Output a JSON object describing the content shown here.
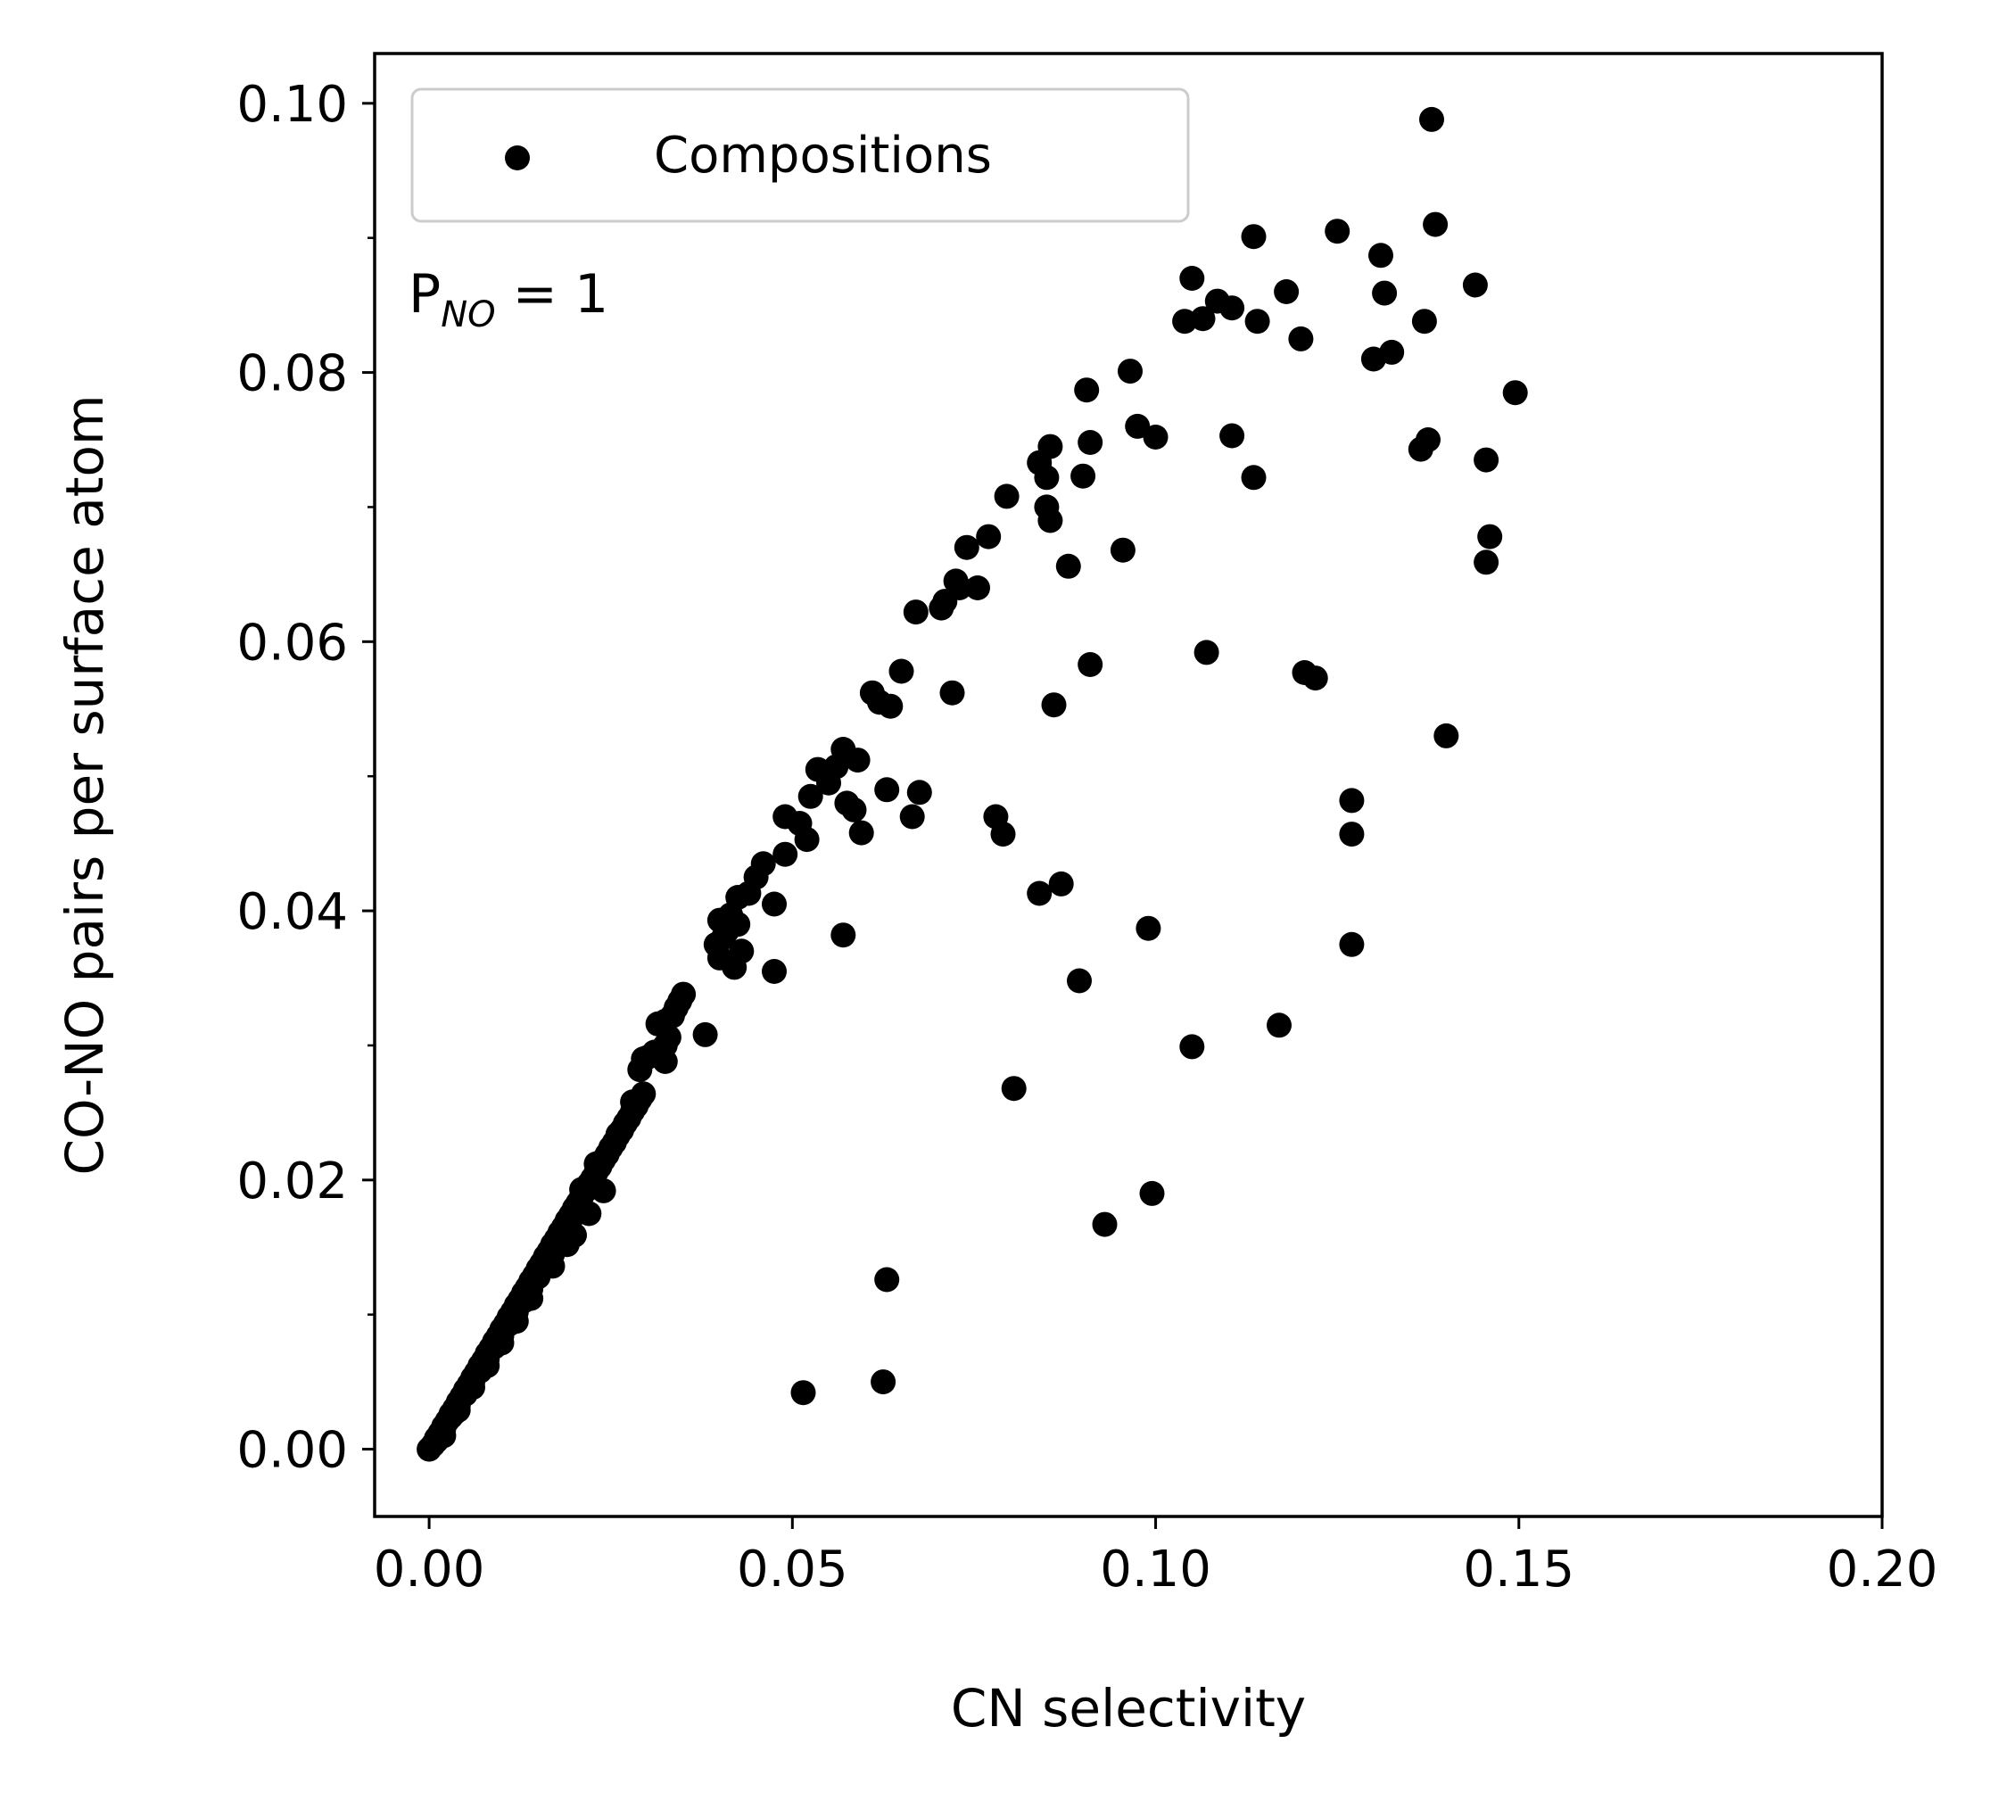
{
  "chart_data": {
    "type": "scatter",
    "xlabel": "CN selectivity",
    "ylabel": "CO-NO pairs per surface atom",
    "xlim": [
      -0.0075,
      0.2
    ],
    "ylim": [
      -0.005,
      0.1037
    ],
    "xticks": [
      0.0,
      0.05,
      0.1,
      0.15,
      0.2
    ],
    "xtick_labels": [
      "0.00",
      "0.05",
      "0.10",
      "0.15",
      "0.20"
    ],
    "yticks": [
      0.0,
      0.02,
      0.04,
      0.06,
      0.08,
      0.1
    ],
    "ytick_labels": [
      "0.00",
      "0.02",
      "0.04",
      "0.06",
      "0.08",
      "0.10"
    ],
    "yminor_ticks": [
      0.01,
      0.03,
      0.05,
      0.07,
      0.09
    ],
    "grid": false,
    "legend": {
      "position": "top-left",
      "entries": [
        "Compositions"
      ]
    },
    "annotation": {
      "base": "P",
      "subscript": "NO",
      "rest": " = 1"
    },
    "marker_color": "#000000",
    "series": [
      {
        "name": "Compositions",
        "points": [
          [
            0.0,
            0.0
          ],
          [
            0.0005,
            0.0003
          ],
          [
            0.001,
            0.0008
          ],
          [
            0.0015,
            0.0012
          ],
          [
            0.002,
            0.0017
          ],
          [
            0.0025,
            0.0021
          ],
          [
            0.003,
            0.0026
          ],
          [
            0.0035,
            0.003
          ],
          [
            0.004,
            0.0035
          ],
          [
            0.0045,
            0.0039
          ],
          [
            0.005,
            0.0044
          ],
          [
            0.0055,
            0.0048
          ],
          [
            0.006,
            0.0053
          ],
          [
            0.0065,
            0.0057
          ],
          [
            0.007,
            0.0062
          ],
          [
            0.0075,
            0.0066
          ],
          [
            0.008,
            0.0071
          ],
          [
            0.0085,
            0.0075
          ],
          [
            0.009,
            0.008
          ],
          [
            0.0095,
            0.0084
          ],
          [
            0.01,
            0.0089
          ],
          [
            0.0105,
            0.0093
          ],
          [
            0.011,
            0.0098
          ],
          [
            0.0115,
            0.0102
          ],
          [
            0.012,
            0.0107
          ],
          [
            0.0125,
            0.0111
          ],
          [
            0.013,
            0.0116
          ],
          [
            0.0135,
            0.012
          ],
          [
            0.014,
            0.0125
          ],
          [
            0.0145,
            0.0129
          ],
          [
            0.015,
            0.0134
          ],
          [
            0.0155,
            0.0138
          ],
          [
            0.016,
            0.0143
          ],
          [
            0.0165,
            0.0147
          ],
          [
            0.017,
            0.0152
          ],
          [
            0.0175,
            0.0156
          ],
          [
            0.018,
            0.0161
          ],
          [
            0.0185,
            0.0165
          ],
          [
            0.019,
            0.017
          ],
          [
            0.0195,
            0.0174
          ],
          [
            0.02,
            0.0179
          ],
          [
            0.0205,
            0.0183
          ],
          [
            0.021,
            0.0188
          ],
          [
            0.0215,
            0.0192
          ],
          [
            0.022,
            0.0197
          ],
          [
            0.0225,
            0.0201
          ],
          [
            0.023,
            0.0206
          ],
          [
            0.0235,
            0.021
          ],
          [
            0.024,
            0.0215
          ],
          [
            0.0245,
            0.0219
          ],
          [
            0.025,
            0.0224
          ],
          [
            0.0255,
            0.0228
          ],
          [
            0.026,
            0.0233
          ],
          [
            0.0265,
            0.0237
          ],
          [
            0.027,
            0.0242
          ],
          [
            0.0275,
            0.0246
          ],
          [
            0.028,
            0.0251
          ],
          [
            0.0285,
            0.0255
          ],
          [
            0.029,
            0.026
          ],
          [
            0.0295,
            0.0264
          ],
          [
            0.001,
            0.0006
          ],
          [
            0.002,
            0.0015
          ],
          [
            0.003,
            0.0024
          ],
          [
            0.004,
            0.0032
          ],
          [
            0.005,
            0.0041
          ],
          [
            0.006,
            0.005
          ],
          [
            0.007,
            0.0058
          ],
          [
            0.008,
            0.0067
          ],
          [
            0.009,
            0.0076
          ],
          [
            0.01,
            0.0084
          ],
          [
            0.011,
            0.0093
          ],
          [
            0.012,
            0.0102
          ],
          [
            0.013,
            0.011
          ],
          [
            0.014,
            0.0119
          ],
          [
            0.015,
            0.0128
          ],
          [
            0.016,
            0.0136
          ],
          [
            0.017,
            0.0145
          ],
          [
            0.018,
            0.0154
          ],
          [
            0.002,
            0.001
          ],
          [
            0.004,
            0.0029
          ],
          [
            0.006,
            0.0046
          ],
          [
            0.008,
            0.0062
          ],
          [
            0.01,
            0.0079
          ],
          [
            0.012,
            0.0095
          ],
          [
            0.014,
            0.0112
          ],
          [
            0.017,
            0.0136
          ],
          [
            0.019,
            0.0152
          ],
          [
            0.02,
            0.0159
          ],
          [
            0.022,
            0.0175
          ],
          [
            0.024,
            0.0192
          ],
          [
            0.0015,
            0.0009
          ],
          [
            0.0035,
            0.0027
          ],
          [
            0.0055,
            0.0045
          ],
          [
            0.0075,
            0.0063
          ],
          [
            0.0095,
            0.0081
          ],
          [
            0.0115,
            0.0099
          ],
          [
            0.0135,
            0.0117
          ],
          [
            0.0155,
            0.0135
          ],
          [
            0.0175,
            0.0153
          ],
          [
            0.0195,
            0.0171
          ],
          [
            0.021,
            0.0193
          ],
          [
            0.023,
            0.0212
          ],
          [
            0.026,
            0.0234
          ],
          [
            0.028,
            0.0258
          ],
          [
            0.029,
            0.0282
          ],
          [
            0.0295,
            0.029
          ],
          [
            0.03,
            0.0291
          ],
          [
            0.031,
            0.0295
          ],
          [
            0.032,
            0.0297
          ],
          [
            0.0325,
            0.03
          ],
          [
            0.0325,
            0.0288
          ],
          [
            0.0315,
            0.0316
          ],
          [
            0.033,
            0.0306
          ],
          [
            0.0335,
            0.0322
          ],
          [
            0.034,
            0.0328
          ],
          [
            0.0345,
            0.0333
          ],
          [
            0.035,
            0.0338
          ],
          [
            0.0325,
            0.0318
          ],
          [
            0.038,
            0.0308
          ],
          [
            0.0395,
            0.0375
          ],
          [
            0.04,
            0.0365
          ],
          [
            0.0405,
            0.038
          ],
          [
            0.041,
            0.0385
          ],
          [
            0.04,
            0.0393
          ],
          [
            0.0415,
            0.0397
          ],
          [
            0.0425,
            0.039
          ],
          [
            0.042,
            0.0358
          ],
          [
            0.043,
            0.037
          ],
          [
            0.0425,
            0.041
          ],
          [
            0.044,
            0.0413
          ],
          [
            0.045,
            0.0425
          ],
          [
            0.046,
            0.0435
          ],
          [
            0.0475,
            0.0405
          ],
          [
            0.0475,
            0.0355
          ],
          [
            0.049,
            0.0442
          ],
          [
            0.049,
            0.047
          ],
          [
            0.051,
            0.0465
          ],
          [
            0.0525,
            0.0485
          ],
          [
            0.0535,
            0.0505
          ],
          [
            0.052,
            0.0453
          ],
          [
            0.055,
            0.0495
          ],
          [
            0.056,
            0.0507
          ],
          [
            0.057,
            0.052
          ],
          [
            0.0575,
            0.048
          ],
          [
            0.059,
            0.0512
          ],
          [
            0.0585,
            0.0475
          ],
          [
            0.0595,
            0.0458
          ],
          [
            0.057,
            0.0382
          ],
          [
            0.061,
            0.0562
          ],
          [
            0.062,
            0.0555
          ],
          [
            0.0635,
            0.0552
          ],
          [
            0.063,
            0.049
          ],
          [
            0.065,
            0.0578
          ],
          [
            0.0665,
            0.047
          ],
          [
            0.067,
            0.0622
          ],
          [
            0.0675,
            0.0488
          ],
          [
            0.0705,
            0.0625
          ],
          [
            0.071,
            0.063
          ],
          [
            0.072,
            0.0562
          ],
          [
            0.073,
            0.064
          ],
          [
            0.0725,
            0.0645
          ],
          [
            0.074,
            0.067
          ],
          [
            0.0755,
            0.064
          ],
          [
            0.077,
            0.0678
          ],
          [
            0.078,
            0.047
          ],
          [
            0.079,
            0.0457
          ],
          [
            0.0795,
            0.0708
          ],
          [
            0.0805,
            0.0268
          ],
          [
            0.084,
            0.0733
          ],
          [
            0.084,
            0.0413
          ],
          [
            0.085,
            0.0722
          ],
          [
            0.0855,
            0.0745
          ],
          [
            0.085,
            0.07
          ],
          [
            0.0855,
            0.069
          ],
          [
            0.086,
            0.0553
          ],
          [
            0.087,
            0.042
          ],
          [
            0.088,
            0.0656
          ],
          [
            0.0895,
            0.0348
          ],
          [
            0.09,
            0.0723
          ],
          [
            0.0905,
            0.0787
          ],
          [
            0.091,
            0.0748
          ],
          [
            0.091,
            0.0583
          ],
          [
            0.093,
            0.0167
          ],
          [
            0.0955,
            0.0668
          ],
          [
            0.0965,
            0.0801
          ],
          [
            0.0975,
            0.076
          ],
          [
            0.099,
            0.0387
          ],
          [
            0.0995,
            0.019
          ],
          [
            0.1,
            0.0752
          ],
          [
            0.104,
            0.0838
          ],
          [
            0.105,
            0.087
          ],
          [
            0.105,
            0.0299
          ],
          [
            0.1065,
            0.084
          ],
          [
            0.107,
            0.0592
          ],
          [
            0.1085,
            0.0853
          ],
          [
            0.1105,
            0.0848
          ],
          [
            0.1105,
            0.0753
          ],
          [
            0.1135,
            0.0901
          ],
          [
            0.1135,
            0.0722
          ],
          [
            0.114,
            0.0838
          ],
          [
            0.117,
            0.0315
          ],
          [
            0.118,
            0.086
          ],
          [
            0.12,
            0.0825
          ],
          [
            0.1205,
            0.0577
          ],
          [
            0.122,
            0.0573
          ],
          [
            0.125,
            0.0905
          ],
          [
            0.127,
            0.0482
          ],
          [
            0.127,
            0.0457
          ],
          [
            0.127,
            0.0375
          ],
          [
            0.13,
            0.081
          ],
          [
            0.131,
            0.0887
          ],
          [
            0.1315,
            0.0859
          ],
          [
            0.1325,
            0.0815
          ],
          [
            0.1365,
            0.0743
          ],
          [
            0.137,
            0.0838
          ],
          [
            0.1375,
            0.075
          ],
          [
            0.138,
            0.0988
          ],
          [
            0.1385,
            0.091
          ],
          [
            0.14,
            0.053
          ],
          [
            0.144,
            0.0865
          ],
          [
            0.1455,
            0.0735
          ],
          [
            0.146,
            0.0678
          ],
          [
            0.1455,
            0.0659
          ],
          [
            0.1495,
            0.0785
          ],
          [
            0.0515,
            0.0042
          ],
          [
            0.0625,
            0.005
          ],
          [
            0.063,
            0.0126
          ]
        ]
      }
    ]
  }
}
